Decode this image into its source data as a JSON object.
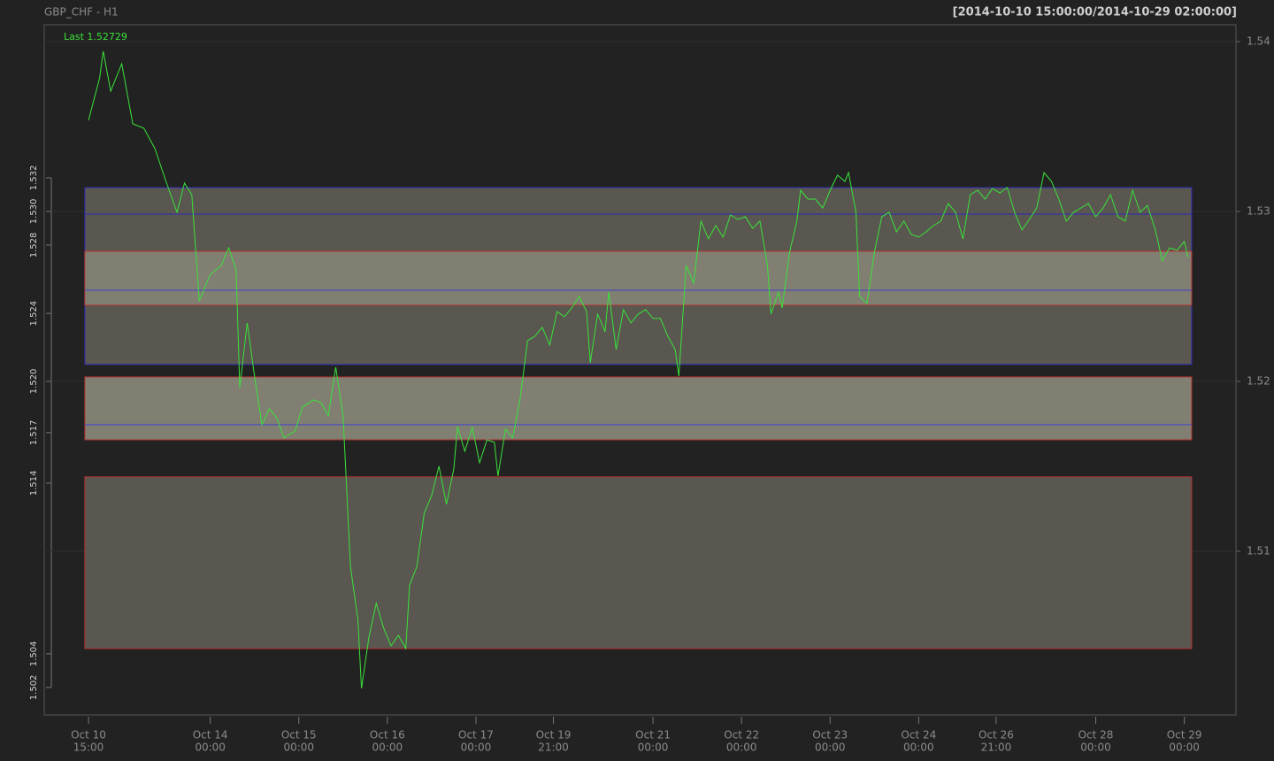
{
  "chart_data": {
    "type": "line",
    "title": "GBP_CHF - H1",
    "subtitle": "[2014-10-10 15:00:00/2014-10-29 02:00:00]",
    "annotation": "Last 1.52729",
    "color": "#3be33b",
    "x": [
      0,
      3,
      4,
      6,
      9,
      12,
      15,
      18,
      21,
      24,
      26,
      28,
      30,
      33,
      36,
      38,
      40,
      41,
      43,
      45,
      47,
      49,
      51,
      53,
      56,
      58,
      61,
      63,
      65,
      67,
      69,
      71,
      73,
      74,
      76,
      78,
      80,
      82,
      84,
      86,
      87,
      89,
      91,
      93,
      95,
      97,
      99,
      100,
      102,
      104,
      106,
      108,
      110,
      111,
      113,
      115,
      117,
      119,
      121,
      123,
      125,
      127,
      129,
      131,
      133,
      135,
      136,
      138,
      140,
      141,
      143,
      145,
      147,
      149,
      151,
      153,
      155,
      157,
      159,
      160,
      162,
      164,
      166,
      168,
      170,
      172,
      174,
      176,
      178,
      180,
      182,
      184,
      185,
      187,
      188,
      190,
      192,
      193,
      195,
      197,
      199,
      201,
      203,
      205,
      206,
      208,
      209,
      211,
      213,
      215,
      217,
      219,
      221,
      223,
      225,
      227,
      229,
      231,
      233,
      235,
      237,
      239,
      241,
      243,
      245,
      247,
      249,
      251,
      253,
      255,
      257,
      259,
      261,
      263,
      265,
      267,
      269,
      271,
      273,
      275,
      277,
      279,
      281,
      283,
      285,
      287,
      289,
      290,
      291,
      293,
      295,
      297,
      298
    ],
    "values": [
      1.53536,
      1.53786,
      1.53943,
      1.53708,
      1.5387,
      1.53516,
      1.5349,
      1.5337,
      1.53177,
      1.52995,
      1.53167,
      1.53099,
      1.52474,
      1.5263,
      1.52682,
      1.52786,
      1.52656,
      1.51964,
      1.52344,
      1.52031,
      1.51745,
      1.51839,
      1.51786,
      1.51667,
      1.51708,
      1.51849,
      1.51891,
      1.51875,
      1.51797,
      1.52083,
      1.51797,
      1.50911,
      1.50599,
      1.50193,
      1.50495,
      1.50693,
      1.50547,
      1.50443,
      1.50505,
      1.50427,
      1.50797,
      1.50911,
      1.51224,
      1.51328,
      1.515,
      1.51276,
      1.51484,
      1.51734,
      1.51589,
      1.51729,
      1.51521,
      1.51656,
      1.51641,
      1.51443,
      1.51719,
      1.51667,
      1.51901,
      1.5224,
      1.52266,
      1.52318,
      1.52214,
      1.52411,
      1.5238,
      1.52432,
      1.525,
      1.52411,
      1.52109,
      1.52396,
      1.52292,
      1.52526,
      1.52188,
      1.52422,
      1.52344,
      1.52396,
      1.52422,
      1.5237,
      1.5237,
      1.52266,
      1.52188,
      1.52031,
      1.52682,
      1.52578,
      1.52943,
      1.52839,
      1.52917,
      1.52849,
      1.52979,
      1.52953,
      1.52969,
      1.52901,
      1.52943,
      1.52682,
      1.52396,
      1.52526,
      1.52432,
      1.5276,
      1.52943,
      1.53125,
      1.53073,
      1.53073,
      1.53021,
      1.53125,
      1.53214,
      1.53177,
      1.53229,
      1.52995,
      1.525,
      1.52458,
      1.5276,
      1.52969,
      1.52995,
      1.5288,
      1.52943,
      1.52865,
      1.52849,
      1.5288,
      1.52917,
      1.52943,
      1.53047,
      1.52995,
      1.52839,
      1.53099,
      1.53125,
      1.53073,
      1.53135,
      1.53109,
      1.53141,
      1.52995,
      1.52891,
      1.52953,
      1.53021,
      1.53229,
      1.53177,
      1.53073,
      1.52943,
      1.52995,
      1.53021,
      1.53047,
      1.52969,
      1.53021,
      1.53099,
      1.52969,
      1.52943,
      1.53125,
      1.52995,
      1.53036,
      1.52901,
      1.52813,
      1.52708,
      1.52786,
      1.52771,
      1.52823,
      1.52729
    ],
    "xlim": [
      -12,
      311
    ],
    "ylim": [
      1.50036,
      1.54099
    ],
    "xticks": [
      {
        "value": 0,
        "label": "Oct 10",
        "sublabel": "15:00"
      },
      {
        "value": 33,
        "label": "Oct 14",
        "sublabel": "00:00"
      },
      {
        "value": 57,
        "label": "Oct 15",
        "sublabel": "00:00"
      },
      {
        "value": 81,
        "label": "Oct 16",
        "sublabel": "00:00"
      },
      {
        "value": 105,
        "label": "Oct 17",
        "sublabel": "00:00"
      },
      {
        "value": 126,
        "label": "Oct 19",
        "sublabel": "21:00"
      },
      {
        "value": 153,
        "label": "Oct 21",
        "sublabel": "00:00"
      },
      {
        "value": 177,
        "label": "Oct 22",
        "sublabel": "00:00"
      },
      {
        "value": 201,
        "label": "Oct 23",
        "sublabel": "00:00"
      },
      {
        "value": 225,
        "label": "Oct 24",
        "sublabel": "00:00"
      },
      {
        "value": 246,
        "label": "Oct 26",
        "sublabel": "21:00"
      },
      {
        "value": 273,
        "label": "Oct 28",
        "sublabel": "00:00"
      },
      {
        "value": 297,
        "label": "Oct 29",
        "sublabel": "00:00"
      }
    ],
    "yticks": [
      1.51,
      1.52,
      1.53,
      1.54
    ],
    "grid": true,
    "left_ticks": [
      {
        "value": 1.53198,
        "label": "1.532"
      },
      {
        "value": 1.53,
        "label": "1.530"
      },
      {
        "value": 1.52802,
        "label": "1.528"
      },
      {
        "value": 1.524,
        "label": "1.524"
      },
      {
        "value": 1.52,
        "label": "1.520"
      },
      {
        "value": 1.51698,
        "label": "1.517"
      },
      {
        "value": 1.51401,
        "label": "1.514"
      },
      {
        "value": 1.50396,
        "label": "1.504"
      },
      {
        "value": 1.50198,
        "label": "1.502"
      }
    ],
    "zone_span": [
      -1,
      299
    ],
    "zones": [
      {
        "top": 1.53141,
        "bottom": 1.52099,
        "edge": "#2a2ab8",
        "fill": "#59574f"
      },
      {
        "top": 1.52766,
        "bottom": 1.52448,
        "edge": "#b83030",
        "fill": "#807f72"
      },
      {
        "top": 1.52026,
        "bottom": 1.51656,
        "edge": "#b83030",
        "fill": "#807f72"
      },
      {
        "top": 1.51438,
        "bottom": 1.50427,
        "edge": "#b83030",
        "fill": "#59574f"
      }
    ],
    "levels": [
      {
        "value": 1.52984,
        "color": "#2a2ab8"
      },
      {
        "value": 1.52536,
        "color": "#4040d0"
      },
      {
        "value": 1.51745,
        "color": "#4040d0"
      }
    ]
  }
}
